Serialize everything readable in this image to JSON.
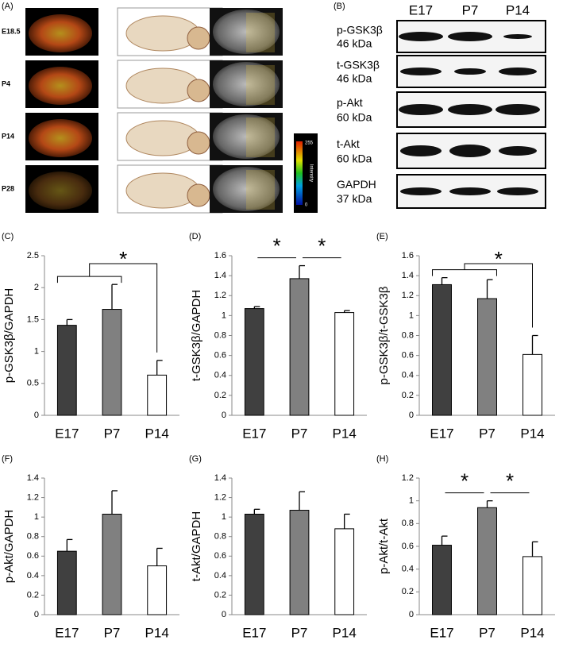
{
  "panel_a": {
    "label": "(A)",
    "rows": [
      "E18.5",
      "P4",
      "P14",
      "P28"
    ],
    "scale_title": "Intensity",
    "scale_max": "255",
    "scale_min": "0"
  },
  "panel_b": {
    "label": "(B)",
    "lanes": [
      "E17",
      "P7",
      "P14"
    ],
    "blots": [
      {
        "name": "p-GSK3β",
        "size": "46 kDa"
      },
      {
        "name": "t-GSK3β",
        "size": "46 kDa"
      },
      {
        "name": "p-Akt",
        "size": "60 kDa"
      },
      {
        "name": "t-Akt",
        "size": "60 kDa"
      },
      {
        "name": "GAPDH",
        "size": "37 kDa"
      }
    ]
  },
  "chart_data": [
    {
      "type": "bar",
      "label": "(C)",
      "y_label": "p-GSK3β/GAPDH",
      "categories": [
        "E17",
        "P7",
        "P14"
      ],
      "values": [
        1.41,
        1.66,
        0.63
      ],
      "errors": [
        0.09,
        0.39,
        0.23
      ],
      "colors": [
        "#404040",
        "#808080",
        "#ffffff"
      ],
      "ylim": [
        0,
        2.5
      ],
      "yticks": [
        0,
        0.5,
        1,
        1.5,
        2,
        2.5
      ],
      "annotations": [
        {
          "text": "*",
          "style": "bracket",
          "left": [
            "E17",
            "P7"
          ],
          "right": [
            "P14"
          ]
        }
      ]
    },
    {
      "type": "bar",
      "label": "(D)",
      "y_label": "t-GSK3β/GAPDH",
      "categories": [
        "E17",
        "P7",
        "P14"
      ],
      "values": [
        1.07,
        1.37,
        1.03
      ],
      "errors": [
        0.02,
        0.13,
        0.02
      ],
      "colors": [
        "#404040",
        "#808080",
        "#ffffff"
      ],
      "ylim": [
        0,
        1.6
      ],
      "yticks": [
        0,
        0.2,
        0.4,
        0.6,
        0.8,
        1,
        1.2,
        1.4,
        1.6
      ],
      "annotations": [
        {
          "text": "*",
          "style": "line",
          "left": [
            "E17"
          ],
          "right": [
            "P7"
          ]
        },
        {
          "text": "*",
          "style": "line",
          "left": [
            "P7"
          ],
          "right": [
            "P14"
          ]
        }
      ]
    },
    {
      "type": "bar",
      "label": "(E)",
      "y_label": "p-GSK3β/t-GSK3β",
      "categories": [
        "E17",
        "P7",
        "P14"
      ],
      "values": [
        1.31,
        1.17,
        0.61
      ],
      "errors": [
        0.07,
        0.19,
        0.19
      ],
      "colors": [
        "#404040",
        "#808080",
        "#ffffff"
      ],
      "ylim": [
        0,
        1.6
      ],
      "yticks": [
        0,
        0.2,
        0.4,
        0.6,
        0.8,
        1,
        1.2,
        1.4,
        1.6
      ],
      "annotations": [
        {
          "text": "*",
          "style": "bracket",
          "left": [
            "E17",
            "P7"
          ],
          "right": [
            "P14"
          ]
        }
      ]
    },
    {
      "type": "bar",
      "label": "(F)",
      "y_label": "p-Akt/GAPDH",
      "categories": [
        "E17",
        "P7",
        "P14"
      ],
      "values": [
        0.65,
        1.03,
        0.5
      ],
      "errors": [
        0.12,
        0.24,
        0.18
      ],
      "colors": [
        "#404040",
        "#808080",
        "#ffffff"
      ],
      "ylim": [
        0,
        1.4
      ],
      "yticks": [
        0,
        0.2,
        0.4,
        0.6,
        0.8,
        1,
        1.2,
        1.4
      ],
      "annotations": []
    },
    {
      "type": "bar",
      "label": "(G)",
      "y_label": "t-Akt/GAPDH",
      "categories": [
        "E17",
        "P7",
        "P14"
      ],
      "values": [
        1.03,
        1.07,
        0.88
      ],
      "errors": [
        0.05,
        0.19,
        0.15
      ],
      "colors": [
        "#404040",
        "#808080",
        "#ffffff"
      ],
      "ylim": [
        0,
        1.4
      ],
      "yticks": [
        0,
        0.2,
        0.4,
        0.6,
        0.8,
        1,
        1.2,
        1.4
      ],
      "annotations": []
    },
    {
      "type": "bar",
      "label": "(H)",
      "y_label": "p-Akt/t-Akt",
      "categories": [
        "E17",
        "P7",
        "P14"
      ],
      "values": [
        0.61,
        0.94,
        0.51
      ],
      "errors": [
        0.08,
        0.06,
        0.13
      ],
      "colors": [
        "#404040",
        "#808080",
        "#ffffff"
      ],
      "ylim": [
        0,
        1.2
      ],
      "yticks": [
        0,
        0.2,
        0.4,
        0.6,
        0.8,
        1,
        1.2
      ],
      "annotations": [
        {
          "text": "*",
          "style": "line",
          "left": [
            "E17"
          ],
          "right": [
            "P7"
          ]
        },
        {
          "text": "*",
          "style": "line",
          "left": [
            "P7"
          ],
          "right": [
            "P14"
          ]
        }
      ]
    }
  ]
}
